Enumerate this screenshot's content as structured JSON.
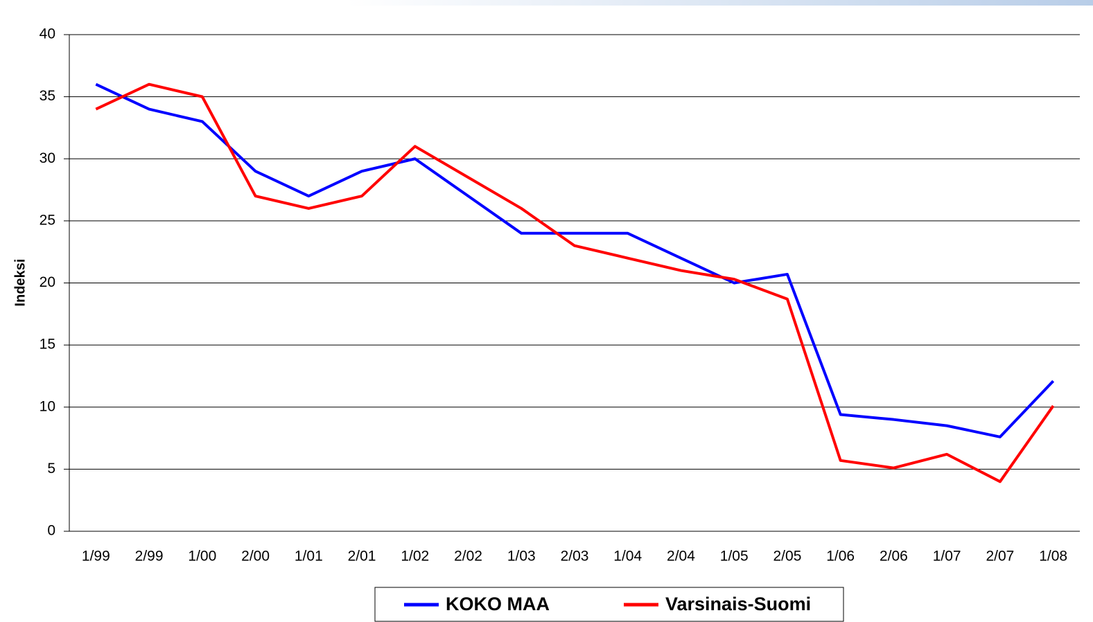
{
  "chart_data": {
    "type": "line",
    "y_label": "Indeksi",
    "categories": [
      "1/99",
      "2/99",
      "1/00",
      "2/00",
      "1/01",
      "2/01",
      "1/02",
      "2/02",
      "1/03",
      "2/03",
      "1/04",
      "2/04",
      "1/05",
      "2/05",
      "1/06",
      "2/06",
      "1/07",
      "2/07",
      "1/08"
    ],
    "series": [
      {
        "name": "KOKO MAA",
        "color": "#0000ff",
        "values": [
          36,
          34,
          33,
          29,
          27,
          29,
          30,
          27,
          24,
          24,
          24,
          22,
          20,
          20.7,
          9.4,
          9,
          8.5,
          7.6,
          12.1
        ]
      },
      {
        "name": "Varsinais-Suomi",
        "color": "#ff0000",
        "values": [
          34,
          36,
          35,
          27,
          26,
          27,
          31,
          28.5,
          26,
          23,
          22,
          21,
          20.3,
          18.7,
          5.7,
          5.1,
          6.2,
          4,
          10.1
        ]
      }
    ],
    "ylim": [
      0,
      40
    ],
    "yticks": [
      0,
      5,
      10,
      15,
      20,
      25,
      30,
      35,
      40
    ],
    "grid": true,
    "legend": "bottom"
  }
}
